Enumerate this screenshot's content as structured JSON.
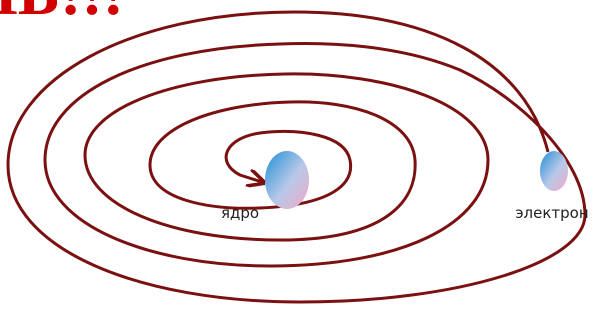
{
  "header": {
    "title": "ЛЬ!!!"
  },
  "nodes": [
    {
      "label": "ядро"
    },
    {
      "label": "электрон"
    }
  ]
}
